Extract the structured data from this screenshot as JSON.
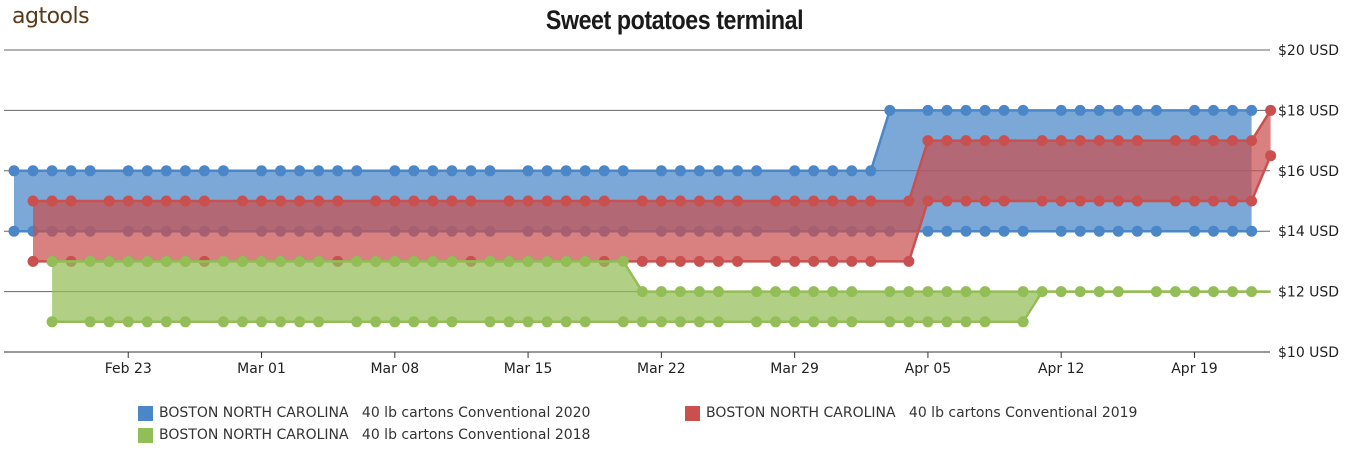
{
  "logo": "agtools",
  "chart_data": {
    "type": "area",
    "title": "Sweet potatoes terminal",
    "x_labels": [
      "Feb 23",
      "Mar 01",
      "Mar 08",
      "Mar 15",
      "Mar 22",
      "Mar 29",
      "Apr 05",
      "Apr 12",
      "Apr 19"
    ],
    "x_start": "2020-02-17",
    "x_end": "2020-04-23",
    "y_labels": [
      "$10 USD",
      "$12 USD",
      "$14 USD",
      "$16 USD",
      "$18 USD",
      "$20 USD"
    ],
    "ylim": [
      10,
      20
    ],
    "y_ticks": [
      10,
      12,
      14,
      16,
      18,
      20
    ],
    "grid": true,
    "legend_position": "bottom",
    "series": [
      {
        "name": "BOSTON NORTH CAROLINA   40 lb cartons Conventional 2020",
        "color": "#4a86c8",
        "segments": [
          {
            "from": "2020-02-17",
            "to": "2020-04-02",
            "low": 14,
            "high": 16
          },
          {
            "from": "2020-04-03",
            "to": "2020-04-22",
            "low": 14,
            "high": 18
          }
        ]
      },
      {
        "name": "BOSTON NORTH CAROLINA   40 lb cartons Conventional 2019",
        "color": "#c9504f",
        "segments": [
          {
            "from": "2020-02-18",
            "to": "2020-04-04",
            "low": 13,
            "high": 15
          },
          {
            "from": "2020-04-05",
            "to": "2020-04-22",
            "low": 15,
            "high": 17
          },
          {
            "from": "2020-04-23",
            "to": "2020-04-23",
            "low": 16.5,
            "high": 18
          }
        ]
      },
      {
        "name": "BOSTON NORTH CAROLINA   40 lb cartons Conventional 2018",
        "color": "#93be57",
        "segments": [
          {
            "from": "2020-02-19",
            "to": "2020-03-20",
            "low": 11,
            "high": 13
          },
          {
            "from": "2020-03-21",
            "to": "2020-04-10",
            "low": 11,
            "high": 12
          },
          {
            "from": "2020-04-11",
            "to": "2020-04-23",
            "low": 12,
            "high": 12
          }
        ]
      }
    ]
  }
}
